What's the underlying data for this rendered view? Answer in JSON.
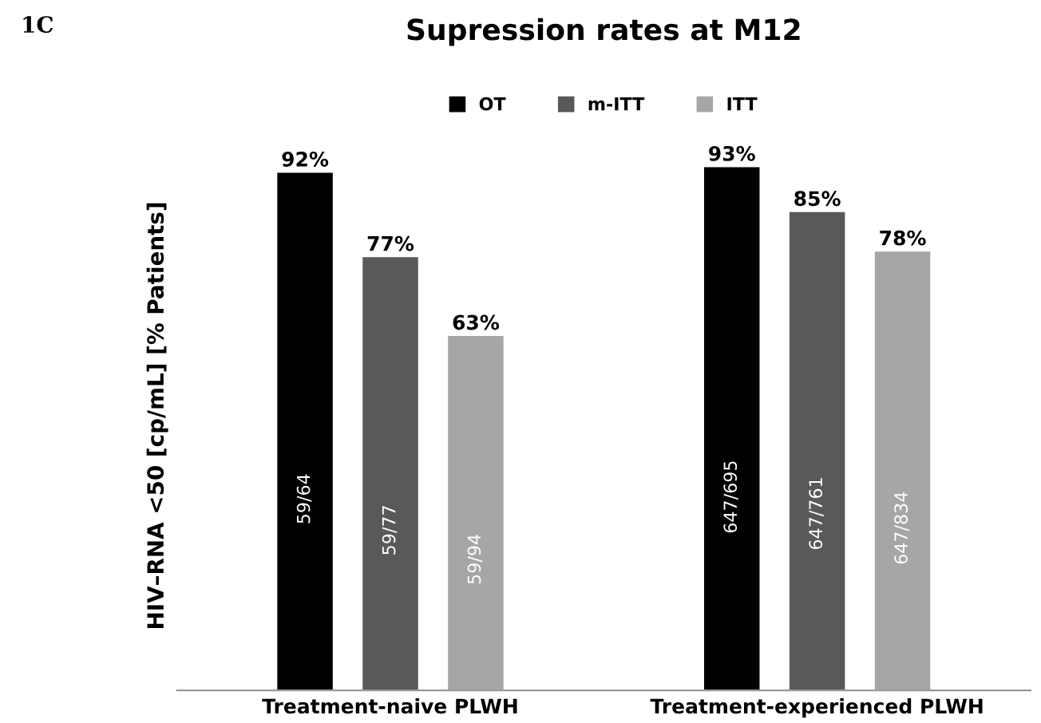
{
  "chart_data": {
    "type": "bar",
    "title": "Supression rates at M12",
    "ylabel": "HIV–RNA <50 [cp/mL] [% Patients]",
    "categories": [
      "Treatment-naive PLWH",
      "Treatment-experienced PLWH"
    ],
    "series": [
      {
        "name": "OT",
        "color": "#000000",
        "values": [
          92,
          93
        ],
        "value_labels": [
          "92%",
          "93%"
        ]
      },
      {
        "name": "m-ITT",
        "color": "#595959",
        "values": [
          77,
          85
        ],
        "value_labels": [
          "77%",
          "85%"
        ]
      },
      {
        "name": "ITT",
        "color": "#a6a6a6",
        "values": [
          63,
          78
        ],
        "value_labels": [
          "63%",
          "78%"
        ]
      }
    ],
    "annotations": [
      "1C",
      "59/64",
      "59/77",
      "59/94",
      "647/695",
      "647/761",
      "647/834"
    ],
    "legend": "top",
    "grid": false
  }
}
